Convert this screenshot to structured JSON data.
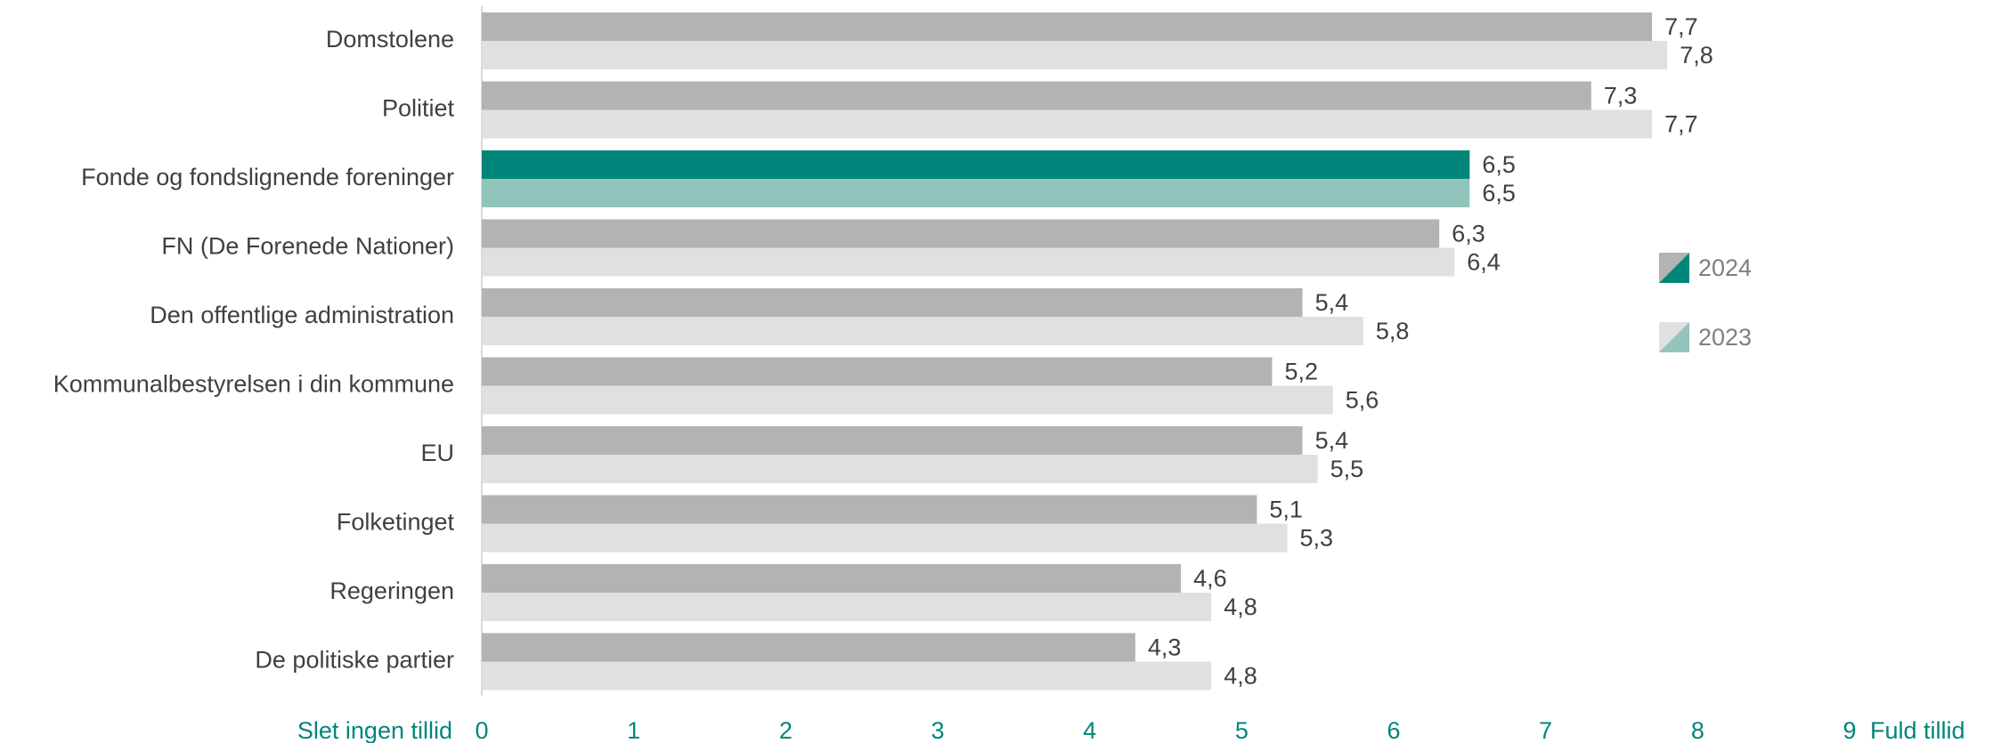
{
  "chart_data": {
    "type": "bar",
    "orientation": "horizontal",
    "categories": [
      "Domstolene",
      "Politiet",
      "Fonde og fondslignende foreninger",
      "FN (De Forenede Nationer)",
      "Den offentlige administration",
      "Kommunalbestyrelsen i din kommune",
      "EU",
      "Folketinget",
      "Regeringen",
      "De politiske partier"
    ],
    "series": [
      {
        "name": "2024",
        "color": "#b3b3b3",
        "colors": [
          "#b3b3b3",
          "#b3b3b3",
          "#00857a",
          "#b3b3b3",
          "#b3b3b3",
          "#b3b3b3",
          "#b3b3b3",
          "#b3b3b3",
          "#b3b3b3",
          "#b3b3b3"
        ],
        "values": [
          7.7,
          7.3,
          6.5,
          6.3,
          5.4,
          5.2,
          5.4,
          5.1,
          4.6,
          4.3
        ],
        "value_labels": [
          "7,7",
          "7,3",
          "6,5",
          "6,3",
          "5,4",
          "5,2",
          "5,4",
          "5,1",
          "4,6",
          "4,3"
        ]
      },
      {
        "name": "2023",
        "color": "#e0e0e0",
        "colors": [
          "#e0e0e0",
          "#e0e0e0",
          "#93c4bc",
          "#e0e0e0",
          "#e0e0e0",
          "#e0e0e0",
          "#e0e0e0",
          "#e0e0e0",
          "#e0e0e0",
          "#e0e0e0"
        ],
        "values": [
          7.8,
          7.7,
          6.5,
          6.4,
          5.8,
          5.6,
          5.5,
          5.3,
          4.8,
          4.8
        ],
        "value_labels": [
          "7,8",
          "7,7",
          "6,5",
          "6,4",
          "5,8",
          "5,6",
          "5,5",
          "5,3",
          "4,8",
          "4,8"
        ]
      }
    ],
    "xlim": [
      0,
      9
    ],
    "xticks": [
      0,
      1,
      2,
      3,
      4,
      5,
      6,
      7,
      8,
      9
    ],
    "x_axis_low_label": "Slet ingen tillid",
    "x_axis_high_label": "Fuld tillid",
    "legend_accent_colors": [
      "#00857a",
      "#93c4bc"
    ],
    "grid": false
  }
}
